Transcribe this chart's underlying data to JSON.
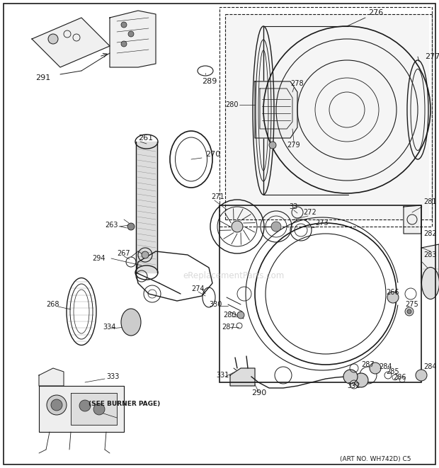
{
  "bg_color": "#ffffff",
  "line_color": "#1a1a1a",
  "watermark": "eReplacementParts.com",
  "art_no": "(ART NO. WH742D) C5",
  "figsize": [
    6.2,
    6.61
  ],
  "dpi": 100
}
